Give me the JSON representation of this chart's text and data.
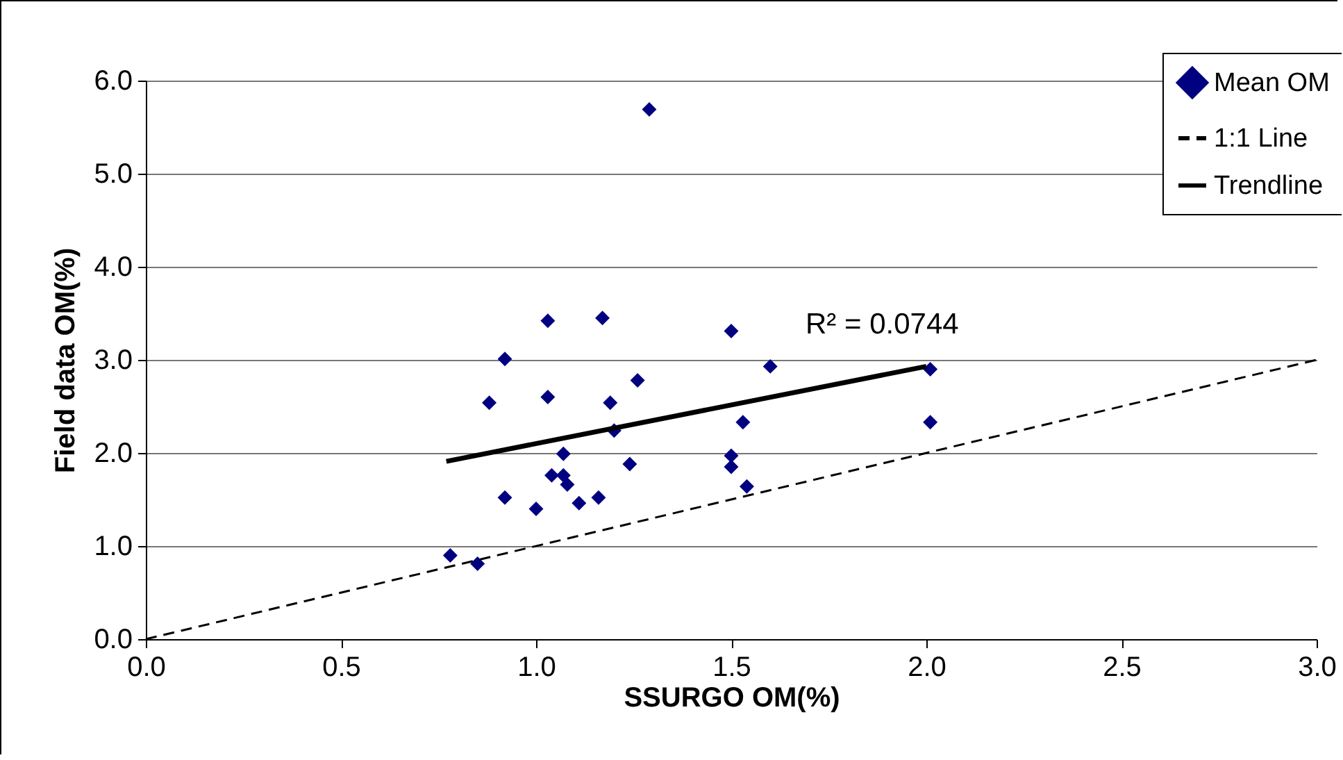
{
  "chart_data": {
    "type": "scatter",
    "xlabel": "SSURGO OM(%)",
    "ylabel": "Field data OM(%)",
    "xlim": [
      0,
      3
    ],
    "ylim": [
      0,
      6
    ],
    "xticks": [
      {
        "value": 0,
        "label": "0.0"
      },
      {
        "value": 0.5,
        "label": "0.5"
      },
      {
        "value": 1,
        "label": "1.0"
      },
      {
        "value": 1.5,
        "label": "1.5"
      },
      {
        "value": 2,
        "label": "2.0"
      },
      {
        "value": 2.5,
        "label": "2.5"
      },
      {
        "value": 3,
        "label": "3.0"
      }
    ],
    "yticks": [
      {
        "value": 0,
        "label": "0.0"
      },
      {
        "value": 1,
        "label": "1.0"
      },
      {
        "value": 2,
        "label": "2.0"
      },
      {
        "value": 3,
        "label": "3.0"
      },
      {
        "value": 4,
        "label": "4.0"
      },
      {
        "value": 5,
        "label": "5.0"
      },
      {
        "value": 6,
        "label": "6.0"
      }
    ],
    "grid": "y",
    "legend": "top right",
    "annotations": [
      "R² = 0.0744"
    ],
    "series": [
      {
        "name": "Mean OM",
        "marker": "diamond",
        "color": "#000080",
        "x": [
          0.78,
          0.85,
          0.88,
          0.92,
          0.92,
          1.0,
          1.03,
          1.03,
          1.04,
          1.07,
          1.07,
          1.08,
          1.11,
          1.16,
          1.17,
          1.19,
          1.2,
          1.24,
          1.26,
          1.29,
          1.5,
          1.5,
          1.5,
          1.53,
          1.54,
          1.6,
          2.01,
          2.01
        ],
        "values": [
          0.9,
          0.81,
          2.54,
          3.01,
          1.52,
          1.4,
          2.6,
          3.42,
          1.76,
          1.99,
          1.76,
          1.66,
          1.46,
          1.52,
          3.45,
          2.54,
          2.24,
          1.88,
          2.78,
          5.69,
          3.31,
          1.97,
          1.85,
          2.33,
          1.64,
          2.93,
          2.9,
          2.33
        ]
      },
      {
        "name": "1:1 Line",
        "type": "line",
        "line_style": "dashed",
        "color": "#000000",
        "x": [
          0,
          3
        ],
        "values": [
          0,
          3
        ]
      },
      {
        "name": "Trendline",
        "type": "line",
        "line_style": "solid",
        "color": "#000000",
        "x": [
          0.77,
          2.0
        ],
        "values": [
          1.91,
          2.93
        ]
      }
    ]
  }
}
